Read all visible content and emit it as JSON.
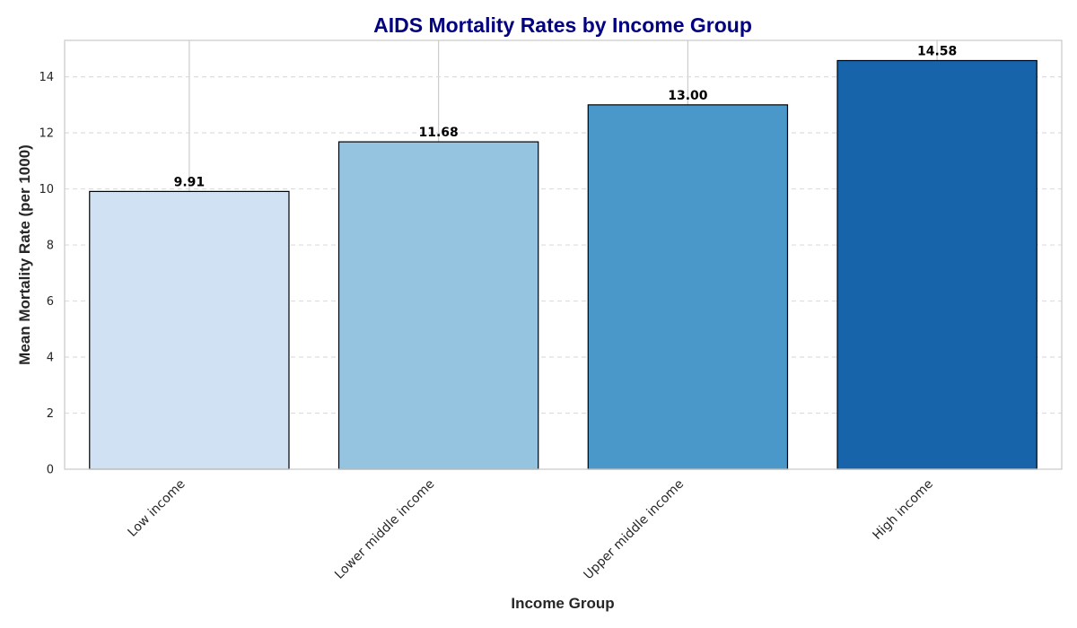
{
  "chart_data": {
    "type": "bar",
    "title": "AIDS Mortality Rates by Income Group",
    "xlabel": "Income Group",
    "ylabel": "Mean Mortality Rate (per 1000)",
    "categories": [
      "Low income",
      "Lower middle income",
      "Upper middle income",
      "High income"
    ],
    "values": [
      9.91,
      11.68,
      13.0,
      14.58
    ],
    "value_labels": [
      "9.91",
      "11.68",
      "13.00",
      "14.58"
    ],
    "bar_colors": [
      "#cfe1f2",
      "#95c4e1",
      "#4a98c9",
      "#1764ab"
    ],
    "yticks": [
      0,
      2,
      4,
      6,
      8,
      10,
      12,
      14
    ],
    "ylim": [
      0,
      15.3
    ],
    "grid": true,
    "colors": {
      "title": "#000080",
      "grid": "#dddddd",
      "spine": "#cccccc",
      "bar_edge": "#000000"
    }
  }
}
